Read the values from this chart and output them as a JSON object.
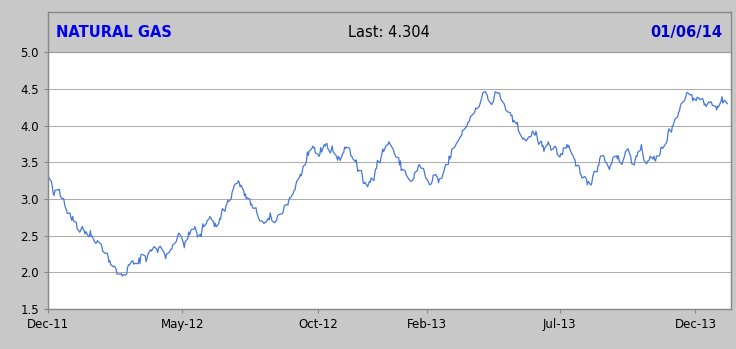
{
  "title_left": "NATURAL GAS",
  "title_center": "Last: 4.304",
  "title_right": "01/06/14",
  "title_bg": "#c8c8c8",
  "title_left_color": "#0000ee",
  "title_center_color": "#000000",
  "title_right_color": "#0000cc",
  "line_color": "#4477dd",
  "plot_bg": "#ffffff",
  "outer_bg": "#c8c8c8",
  "ylim": [
    1.5,
    5.0
  ],
  "yticks": [
    1.5,
    2.0,
    2.5,
    3.0,
    3.5,
    4.0,
    4.5,
    5.0
  ],
  "xtick_labels": [
    "Dec-11",
    "May-12",
    "Oct-12",
    "Feb-13",
    "Jul-13",
    "Dec-13"
  ],
  "grid_color": "#aaaaaa",
  "prices": [
    3.35,
    3.25,
    3.1,
    3.05,
    3.1,
    3.15,
    3.05,
    3.0,
    2.95,
    2.85,
    2.8,
    2.75,
    2.72,
    2.68,
    2.6,
    2.55,
    2.62,
    2.58,
    2.52,
    2.48,
    2.55,
    2.5,
    2.45,
    2.4,
    2.42,
    2.38,
    2.32,
    2.28,
    2.22,
    2.18,
    2.12,
    2.08,
    2.04,
    2.0,
    1.97,
    1.95,
    1.97,
    2.0,
    2.05,
    2.1,
    2.15,
    2.12,
    2.08,
    2.15,
    2.2,
    2.25,
    2.22,
    2.18,
    2.25,
    2.3,
    2.35,
    2.32,
    2.28,
    2.35,
    2.32,
    2.28,
    2.22,
    2.25,
    2.3,
    2.35,
    2.4,
    2.45,
    2.5,
    2.48,
    2.42,
    2.38,
    2.45,
    2.5,
    2.55,
    2.62,
    2.58,
    2.52,
    2.48,
    2.55,
    2.62,
    2.68,
    2.72,
    2.78,
    2.72,
    2.65,
    2.62,
    2.68,
    2.75,
    2.82,
    2.88,
    2.92,
    2.98,
    3.05,
    3.12,
    3.18,
    3.25,
    3.22,
    3.15,
    3.08,
    3.05,
    3.0,
    2.95,
    2.9,
    2.85,
    2.82,
    2.78,
    2.72,
    2.68,
    2.65,
    2.68,
    2.72,
    2.75,
    2.72,
    2.68,
    2.72,
    2.78,
    2.82,
    2.85,
    2.9,
    2.95,
    3.0,
    3.05,
    3.12,
    3.18,
    3.25,
    3.32,
    3.38,
    3.45,
    3.52,
    3.58,
    3.65,
    3.72,
    3.68,
    3.62,
    3.58,
    3.65,
    3.72,
    3.78,
    3.72,
    3.65,
    3.72,
    3.65,
    3.58,
    3.52,
    3.55,
    3.62,
    3.68,
    3.72,
    3.68,
    3.62,
    3.58,
    3.52,
    3.45,
    3.38,
    3.32,
    3.25,
    3.2,
    3.18,
    3.22,
    3.28,
    3.35,
    3.42,
    3.48,
    3.55,
    3.62,
    3.68,
    3.72,
    3.78,
    3.75,
    3.68,
    3.62,
    3.55,
    3.5,
    3.45,
    3.4,
    3.35,
    3.32,
    3.28,
    3.22,
    3.28,
    3.35,
    3.42,
    3.48,
    3.42,
    3.35,
    3.28,
    3.22,
    3.18,
    3.25,
    3.32,
    3.28,
    3.22,
    3.28,
    3.35,
    3.42,
    3.48,
    3.55,
    3.62,
    3.68,
    3.72,
    3.78,
    3.85,
    3.9,
    3.95,
    4.0,
    4.05,
    4.1,
    4.15,
    4.2,
    4.25,
    4.3,
    4.35,
    4.4,
    4.45,
    4.42,
    4.35,
    4.28,
    4.35,
    4.42,
    4.45,
    4.42,
    4.35,
    4.28,
    4.22,
    4.18,
    4.12,
    4.08,
    4.05,
    4.0,
    3.95,
    3.9,
    3.85,
    3.82,
    3.78,
    3.82,
    3.88,
    3.92,
    3.88,
    3.82,
    3.78,
    3.72,
    3.68,
    3.72,
    3.78,
    3.72,
    3.68,
    3.72,
    3.68,
    3.62,
    3.58,
    3.62,
    3.68,
    3.72,
    3.68,
    3.62,
    3.55,
    3.5,
    3.45,
    3.4,
    3.35,
    3.32,
    3.25,
    3.18,
    3.22,
    3.28,
    3.35,
    3.42,
    3.48,
    3.55,
    3.62,
    3.55,
    3.48,
    3.42,
    3.48,
    3.55,
    3.62,
    3.58,
    3.52,
    3.48,
    3.55,
    3.62,
    3.68,
    3.62,
    3.55,
    3.48,
    3.55,
    3.62,
    3.68,
    3.62,
    3.55,
    3.5,
    3.55,
    3.6,
    3.55,
    3.5,
    3.55,
    3.62,
    3.68,
    3.72,
    3.78,
    3.85,
    3.92,
    3.98,
    4.05,
    4.12,
    4.18,
    4.25,
    4.32,
    4.38,
    4.42,
    4.45,
    4.42,
    4.38,
    4.35,
    4.38,
    4.42,
    4.38,
    4.32,
    4.28,
    4.32,
    4.35,
    4.32,
    4.28,
    4.22,
    4.25,
    4.32,
    4.38,
    4.35,
    4.304
  ]
}
